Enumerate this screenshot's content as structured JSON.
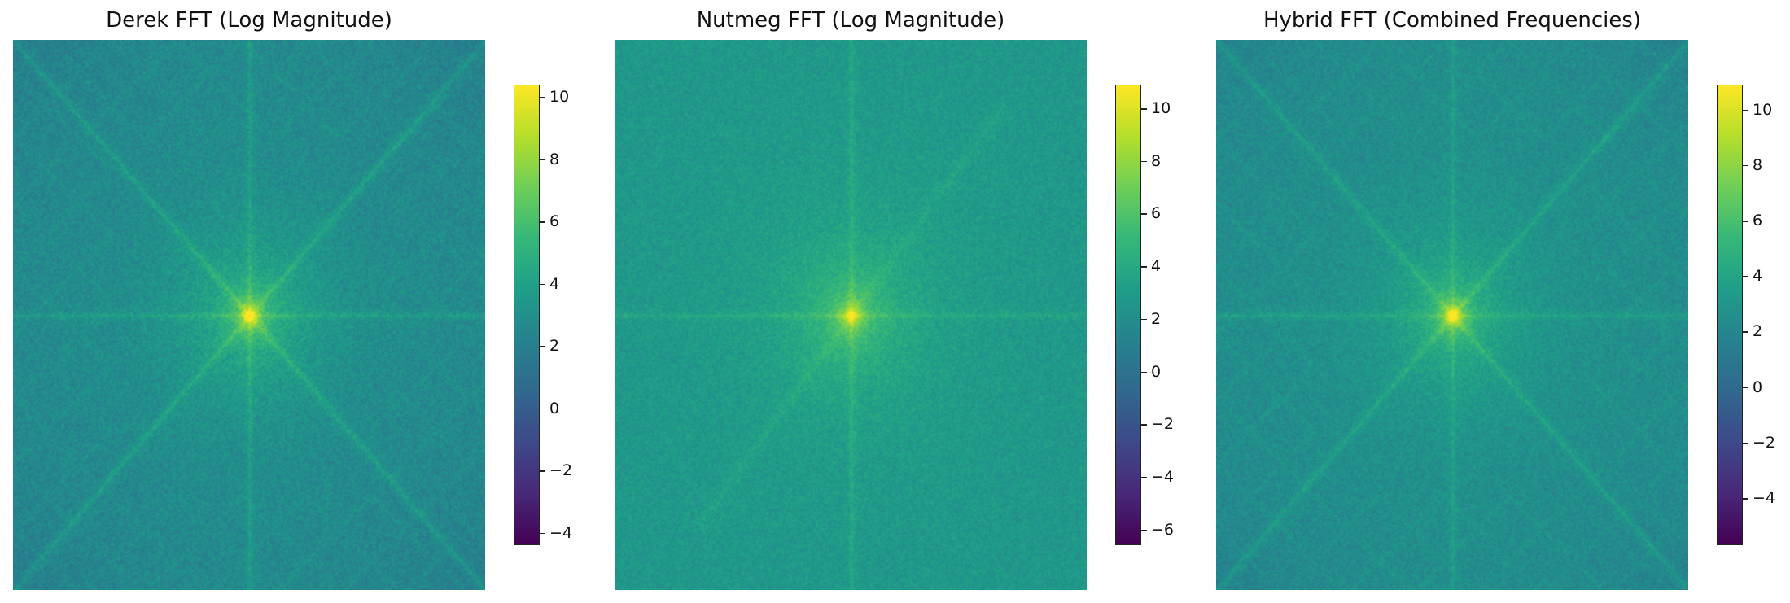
{
  "colormap": [
    "#440154",
    "#482878",
    "#3e4989",
    "#31688e",
    "#26828e",
    "#1f9e89",
    "#35b779",
    "#6ece58",
    "#b5de2b",
    "#fde725"
  ],
  "chart_data": [
    {
      "type": "heatmap",
      "title": "Derek FFT (Log Magnitude)",
      "colorbar_range": [
        -4.4,
        10.4
      ],
      "colorbar_ticks": [
        -4,
        -2,
        0,
        2,
        4,
        6,
        8,
        10
      ],
      "pattern": {
        "center": [
          0.5,
          0.5
        ],
        "background_level": 2.6,
        "peak_level": 10.4,
        "diagonals": true,
        "axis_lines": true,
        "diagonal_band": false
      }
    },
    {
      "type": "heatmap",
      "title": "Nutmeg FFT (Log Magnitude)",
      "colorbar_range": [
        -6.6,
        10.9
      ],
      "colorbar_ticks": [
        -6,
        -4,
        -2,
        0,
        2,
        4,
        6,
        8,
        10
      ],
      "pattern": {
        "center": [
          0.5,
          0.5
        ],
        "background_level": 2.7,
        "peak_level": 10.9,
        "diagonals": false,
        "axis_lines": true,
        "diagonal_band": true
      }
    },
    {
      "type": "heatmap",
      "title": "Hybrid FFT (Combined Frequencies)",
      "colorbar_range": [
        -5.7,
        10.9
      ],
      "colorbar_ticks": [
        -4,
        -2,
        0,
        2,
        4,
        6,
        8,
        10
      ],
      "pattern": {
        "center": [
          0.5,
          0.5
        ],
        "background_level": 2.4,
        "peak_level": 10.9,
        "diagonals": true,
        "axis_lines": true,
        "diagonal_band": false
      }
    }
  ]
}
